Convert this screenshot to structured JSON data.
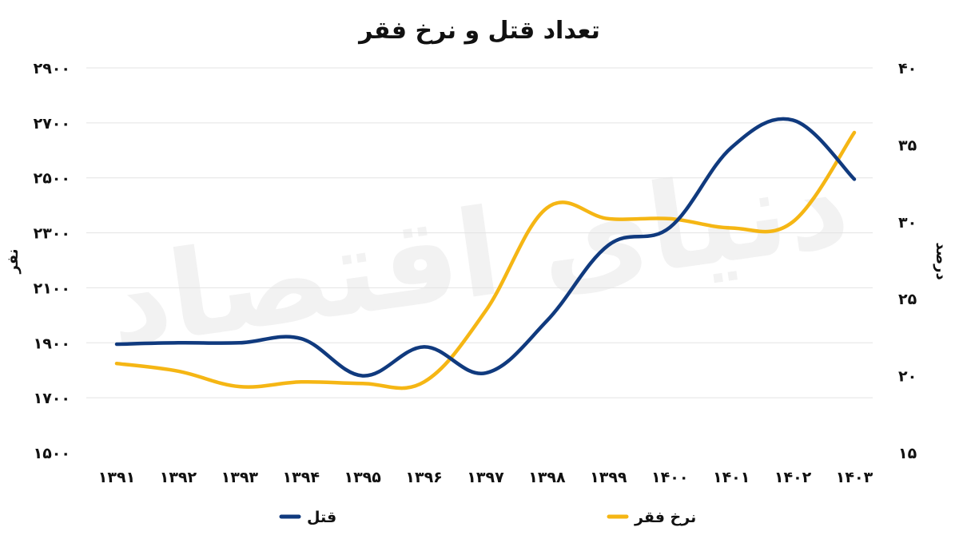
{
  "chart_data": {
    "type": "line",
    "title": "تعداد قتل و نرخ فقر",
    "watermark": "دنیای اقتصاد",
    "categories": [
      "۱۳۹۱",
      "۱۳۹۲",
      "۱۳۹۳",
      "۱۳۹۴",
      "۱۳۹۵",
      "۱۳۹۶",
      "۱۳۹۷",
      "۱۳۹۸",
      "۱۳۹۹",
      "۱۴۰۰",
      "۱۴۰۱",
      "۱۴۰۲",
      "۱۴۰۳"
    ],
    "y_left": {
      "label": "نفر",
      "ylim": [
        1500,
        2900
      ],
      "ticks": [
        1500,
        1700,
        1900,
        2100,
        2300,
        2500,
        2700,
        2900
      ],
      "tick_labels": [
        "۱۵۰۰",
        "۱۷۰۰",
        "۱۹۰۰",
        "۲۱۰۰",
        "۲۳۰۰",
        "۲۵۰۰",
        "۲۷۰۰",
        "۲۹۰۰"
      ]
    },
    "y_right": {
      "label": "درصد",
      "ylim": [
        15,
        40
      ],
      "ticks": [
        15,
        20,
        25,
        30,
        35,
        40
      ],
      "tick_labels": [
        "۱۵",
        "۲۰",
        "۲۵",
        "۳۰",
        "۳۵",
        "۴۰"
      ]
    },
    "series": [
      {
        "name": "قتل",
        "axis": "left",
        "color": "#103a7e",
        "values": [
          1895,
          1900,
          1900,
          1915,
          1780,
          1885,
          1790,
          1980,
          2255,
          2320,
          2610,
          2710,
          2495
        ]
      },
      {
        "name": "نرخ فقر",
        "axis": "right",
        "color": "#f5b614",
        "values": [
          20.8,
          20.3,
          19.3,
          19.6,
          19.5,
          19.6,
          24.2,
          30.9,
          30.2,
          30.2,
          29.6,
          30.0,
          35.8
        ]
      }
    ],
    "grid": true,
    "legend_position": "bottom"
  }
}
